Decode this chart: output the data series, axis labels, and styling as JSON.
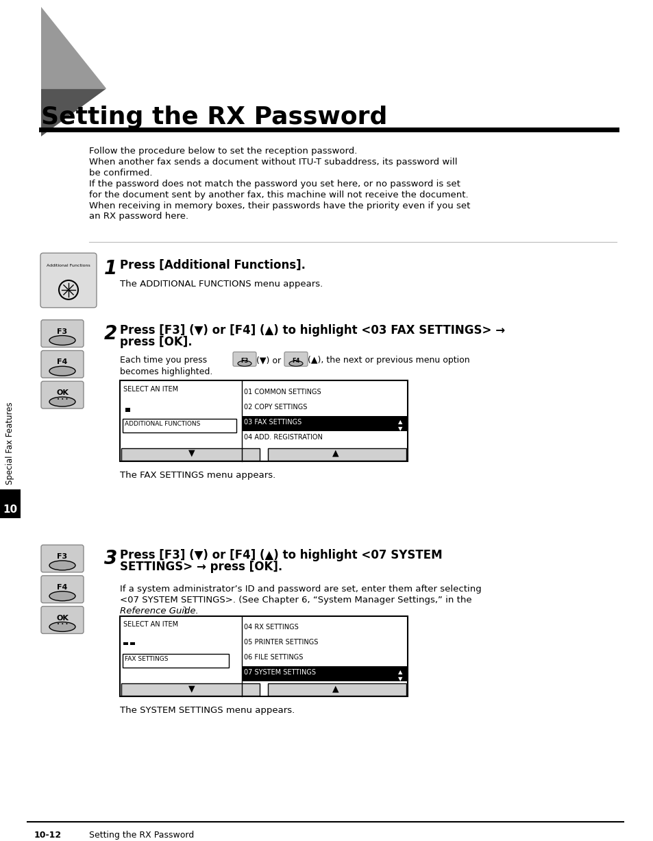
{
  "title": "Setting the RX Password",
  "bg_color": "#ffffff",
  "intro_lines": [
    "Follow the procedure below to set the reception password.",
    "When another fax sends a document without ITU-T subaddress, its password will",
    "be confirmed.",
    "If the password does not match the password you set here, or no password is set",
    "for the document sent by another fax, this machine will not receive the document.",
    "When receiving in memory boxes, their passwords have the priority even if you set",
    "an RX password here."
  ],
  "step1_bold": "Press [Additional Functions].",
  "step1_sub": "The ADDITIONAL FUNCTIONS menu appears.",
  "step2_bold": "Press [F3] (▼) or [F4] (▲) to highlight <03 FAX SETTINGS> →",
  "step2_bold2": "press [OK].",
  "step2_fax_after": "The FAX SETTINGS menu appears.",
  "step3_bold": "Press [F3] (▼) or [F4] (▲) to highlight <07 SYSTEM",
  "step3_bold2": "SETTINGS> → press [OK].",
  "step3_sub2": "If a system administrator’s ID and password are set, enter them after selecting",
  "step3_sub3": "<07 SYSTEM SETTINGS>. (See Chapter 6, “System Manager Settings,” in the",
  "step3_sub4_italic": "Reference Guide.",
  "step3_sub4_rest": ")",
  "step3_sys_after": "The SYSTEM SETTINGS menu appears.",
  "footer_left": "10-12",
  "footer_right": "Setting the RX Password",
  "sidebar_text": "Special Fax Features",
  "tab_num": "10"
}
